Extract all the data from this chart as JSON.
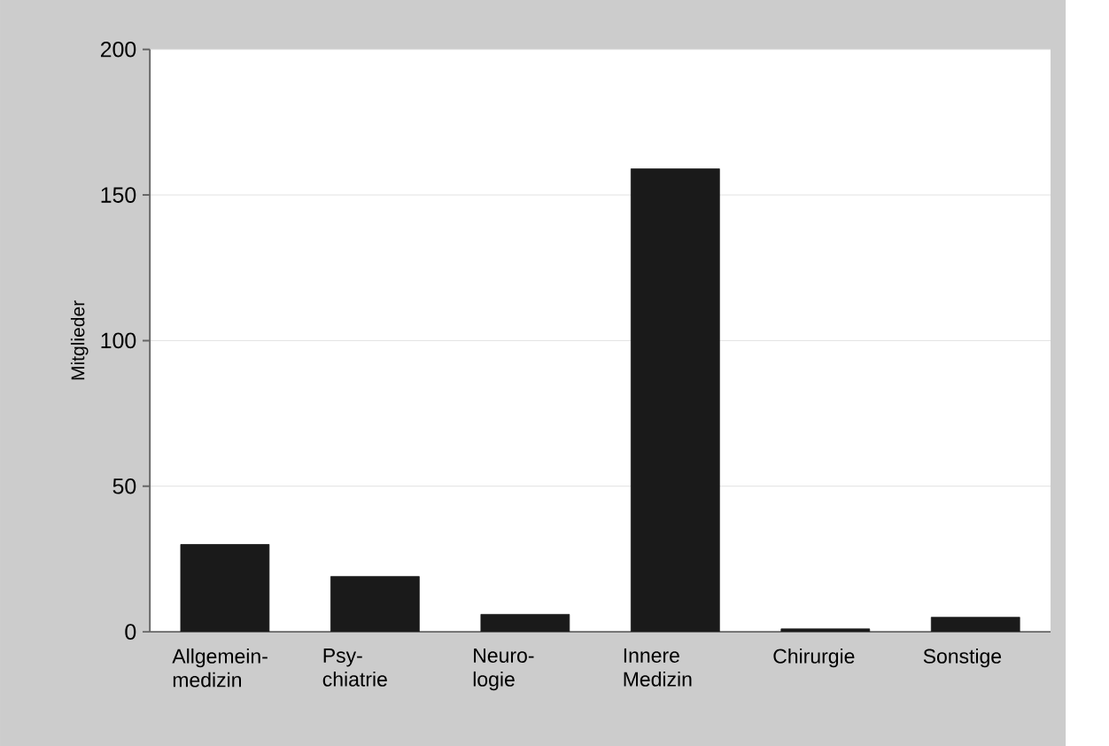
{
  "chart_data": {
    "type": "bar",
    "ylabel": "Mitglieder",
    "categories": [
      "Allgemein- medizin",
      "Psy- chiatrie",
      "Neuro- logie",
      "Innere Medizin",
      "Chirurgie",
      "Sonstige"
    ],
    "values": [
      30,
      19,
      6,
      159,
      1,
      5
    ],
    "color": "#1a1a1a",
    "ylim": [
      0,
      200
    ],
    "yticks": [
      0,
      50,
      100,
      150,
      200
    ],
    "grid": "y"
  }
}
